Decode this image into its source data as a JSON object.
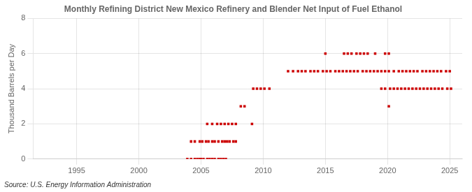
{
  "chart_data": {
    "type": "scatter",
    "title": "Monthly Refining District New Mexico Refinery and Blender Net Input of Fuel Ethanol",
    "ylabel": "Thousand Barrels per Day",
    "source": "Source: U.S. Energy Information Administration",
    "color": "#cc0000",
    "marker": "square",
    "grid": true,
    "xlim": [
      1991.5,
      2026
    ],
    "ylim": [
      0,
      8
    ],
    "xticks": [
      1995,
      2000,
      2005,
      2010,
      2015,
      2020,
      2025
    ],
    "yticks": [
      0,
      2,
      4,
      6,
      8
    ],
    "x": [
      2003.9,
      2004.2,
      2004.5,
      2004.7,
      2004.9,
      2005.0,
      2005.2,
      2005.5,
      2005.7,
      2005.9,
      2006.1,
      2006.4,
      2006.6,
      2006.8,
      2007.0,
      2004.2,
      2004.5,
      2004.9,
      2005.1,
      2005.4,
      2005.6,
      2005.9,
      2006.1,
      2006.4,
      2006.7,
      2006.9,
      2007.1,
      2007.3,
      2007.6,
      2007.8,
      2005.5,
      2005.9,
      2006.3,
      2006.6,
      2006.9,
      2007.2,
      2007.5,
      2007.8,
      2009.1,
      2008.2,
      2008.5,
      2009.2,
      2009.5,
      2009.8,
      2010.1,
      2010.5,
      2012.0,
      2012.4,
      2012.8,
      2013.1,
      2013.4,
      2013.8,
      2014.1,
      2014.4,
      2014.8,
      2015.1,
      2015.4,
      2015.8,
      2016.1,
      2016.4,
      2016.7,
      2017.0,
      2017.3,
      2017.6,
      2018.0,
      2018.3,
      2018.6,
      2018.9,
      2019.2,
      2019.5,
      2019.8,
      2020.1,
      2020.5,
      2020.9,
      2021.2,
      2021.5,
      2021.8,
      2022.1,
      2022.4,
      2022.8,
      2023.1,
      2023.4,
      2023.7,
      2024.0,
      2024.3,
      2024.7,
      2025.0,
      2015.0,
      2016.5,
      2016.8,
      2017.1,
      2017.5,
      2017.8,
      2018.1,
      2018.4,
      2019.0,
      2019.8,
      2020.1,
      2020.1,
      2019.5,
      2019.8,
      2020.2,
      2020.5,
      2020.8,
      2021.1,
      2021.4,
      2021.7,
      2022.0,
      2022.3,
      2022.6,
      2022.9,
      2023.2,
      2023.5,
      2023.8,
      2024.1,
      2024.4,
      2024.8,
      2025.1
    ],
    "values": [
      0,
      0,
      0,
      0,
      0,
      0,
      0,
      0,
      0,
      0,
      0,
      0,
      0,
      0,
      0,
      1,
      1,
      1,
      1,
      1,
      1,
      1,
      1,
      1,
      1,
      1,
      1,
      1,
      1,
      1,
      2,
      2,
      2,
      2,
      2,
      2,
      2,
      2,
      2,
      3,
      3,
      4,
      4,
      4,
      4,
      4,
      5,
      5,
      5,
      5,
      5,
      5,
      5,
      5,
      5,
      5,
      5,
      5,
      5,
      5,
      5,
      5,
      5,
      5,
      5,
      5,
      5,
      5,
      5,
      5,
      5,
      5,
      5,
      5,
      5,
      5,
      5,
      5,
      5,
      5,
      5,
      5,
      5,
      5,
      5,
      5,
      5,
      6,
      6,
      6,
      6,
      6,
      6,
      6,
      6,
      6,
      6,
      6,
      3,
      4,
      4,
      4,
      4,
      4,
      4,
      4,
      4,
      4,
      4,
      4,
      4,
      4,
      4,
      4,
      4,
      4,
      4,
      4
    ]
  }
}
